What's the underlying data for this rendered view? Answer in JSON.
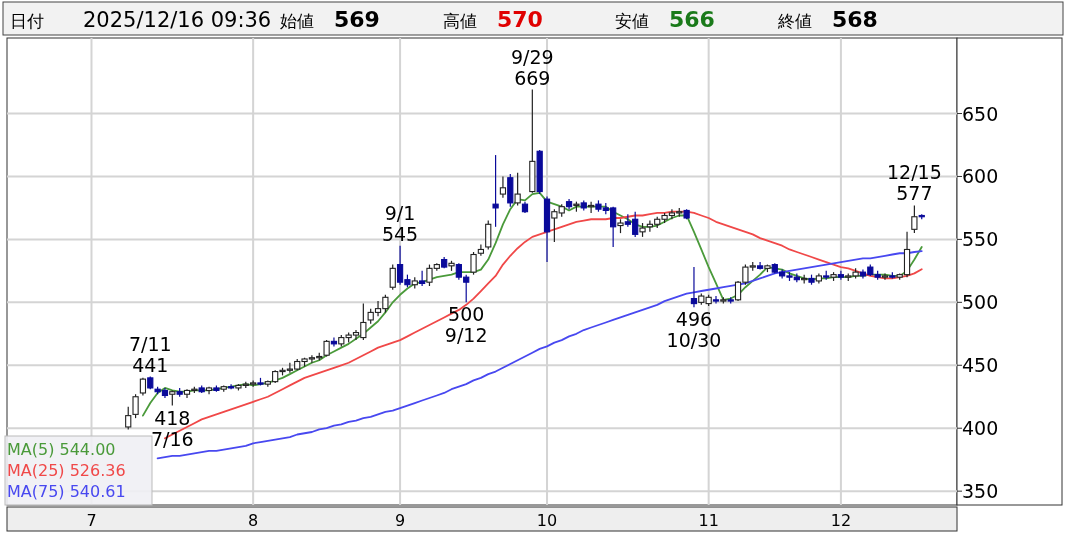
{
  "chart_data": {
    "type": "candlestick",
    "categories": [
      null,
      null,
      null,
      null,
      null,
      null,
      null,
      null,
      null,
      null,
      null,
      "7",
      null,
      null,
      null,
      null,
      null,
      null,
      null,
      null,
      null,
      null,
      null,
      null,
      null,
      null,
      null,
      null,
      null,
      null,
      null,
      null,
      null,
      "8",
      null,
      null,
      null,
      null,
      null,
      null,
      null,
      null,
      null,
      null,
      null,
      null,
      null,
      null,
      null,
      null,
      null,
      null,
      null,
      "9",
      null,
      null,
      null,
      null,
      null,
      null,
      null,
      null,
      null,
      null,
      null,
      null,
      null,
      null,
      null,
      null,
      null,
      null,
      null,
      "10",
      null,
      null,
      null,
      null,
      null,
      null,
      null,
      null,
      null,
      null,
      null,
      null,
      null,
      null,
      null,
      null,
      null,
      null,
      null,
      null,
      null,
      "11",
      null,
      null,
      null,
      null,
      null,
      null,
      null,
      null,
      null,
      null,
      null,
      null,
      null,
      null,
      null,
      null,
      null,
      "12",
      null,
      null,
      null,
      null,
      null,
      null,
      null,
      null,
      null,
      null,
      null
    ],
    "ohlc": [
      null,
      null,
      null,
      null,
      null,
      null,
      null,
      null,
      null,
      null,
      null,
      null,
      null,
      null,
      null,
      null,
      [
        401,
        417,
        399,
        410
      ],
      [
        411,
        427,
        408,
        425
      ],
      [
        428,
        440,
        426,
        439
      ],
      [
        440,
        441,
        431,
        432
      ],
      [
        431,
        433,
        427,
        429
      ],
      [
        430,
        432,
        424,
        426
      ],
      [
        427,
        430,
        418,
        429
      ],
      [
        429,
        432,
        425,
        427
      ],
      [
        427,
        431,
        424,
        430
      ],
      [
        430,
        433,
        428,
        431
      ],
      [
        432,
        434,
        428,
        429
      ],
      [
        430,
        433,
        427,
        432
      ],
      [
        432,
        434,
        429,
        430
      ],
      [
        431,
        434,
        429,
        433
      ],
      [
        433,
        435,
        431,
        432
      ],
      [
        432,
        435,
        430,
        434
      ],
      [
        434,
        437,
        432,
        435
      ],
      [
        435,
        438,
        433,
        436
      ],
      [
        436,
        440,
        434,
        435
      ],
      [
        435,
        438,
        433,
        437
      ],
      [
        437,
        446,
        436,
        445
      ],
      [
        445,
        448,
        442,
        446
      ],
      [
        446,
        452,
        444,
        447
      ],
      [
        447,
        455,
        446,
        453
      ],
      [
        453,
        456,
        449,
        455
      ],
      [
        455,
        458,
        452,
        456
      ],
      [
        456,
        460,
        454,
        457
      ],
      [
        458,
        470,
        457,
        469
      ],
      [
        469,
        472,
        465,
        467
      ],
      [
        467,
        474,
        465,
        472
      ],
      [
        472,
        476,
        468,
        474
      ],
      [
        474,
        478,
        470,
        476
      ],
      [
        472,
        499,
        470,
        484
      ],
      [
        486,
        495,
        483,
        492
      ],
      [
        492,
        501,
        489,
        495
      ],
      [
        495,
        506,
        492,
        504
      ],
      [
        512,
        530,
        510,
        527
      ],
      [
        530,
        545,
        514,
        516
      ],
      [
        518,
        522,
        512,
        514
      ],
      [
        514,
        520,
        511,
        517
      ],
      [
        517,
        525,
        513,
        515
      ],
      [
        516,
        530,
        513,
        527
      ],
      [
        527,
        531,
        525,
        530
      ],
      [
        534,
        536,
        527,
        528
      ],
      [
        529,
        533,
        525,
        531
      ],
      [
        530,
        531,
        518,
        520
      ],
      [
        520,
        522,
        500,
        516
      ],
      [
        524,
        540,
        522,
        538
      ],
      [
        539,
        546,
        537,
        542
      ],
      [
        544,
        565,
        542,
        562
      ],
      [
        578,
        617,
        560,
        575
      ],
      [
        586,
        600,
        583,
        591
      ],
      [
        599,
        602,
        576,
        579
      ],
      [
        579,
        603,
        577,
        586
      ],
      [
        578,
        580,
        571,
        572
      ],
      [
        588,
        669,
        587,
        612
      ],
      [
        620,
        621,
        586,
        588
      ],
      [
        582,
        584,
        532,
        556
      ],
      [
        567,
        574,
        548,
        572
      ],
      [
        571,
        578,
        568,
        576
      ],
      [
        580,
        582,
        574,
        576
      ],
      [
        577,
        580,
        572,
        578
      ],
      [
        579,
        581,
        573,
        575
      ],
      [
        576,
        580,
        571,
        577
      ],
      [
        578,
        581,
        572,
        574
      ],
      [
        575,
        579,
        570,
        573
      ],
      [
        575,
        576,
        544,
        560
      ],
      [
        561,
        566,
        555,
        563
      ],
      [
        564,
        570,
        560,
        562
      ],
      [
        566,
        572,
        552,
        554
      ],
      [
        556,
        563,
        552,
        559
      ],
      [
        560,
        565,
        556,
        562
      ],
      [
        562,
        568,
        559,
        566
      ],
      [
        566,
        571,
        563,
        569
      ],
      [
        569,
        574,
        566,
        571
      ],
      [
        571,
        575,
        568,
        572
      ],
      [
        573,
        574,
        566,
        567
      ],
      [
        503,
        528,
        496,
        499
      ],
      [
        500,
        507,
        498,
        505
      ],
      [
        499,
        506,
        497,
        504
      ],
      [
        502,
        505,
        499,
        501
      ],
      [
        501,
        504,
        499,
        502
      ],
      [
        502,
        504,
        499,
        501
      ],
      [
        502,
        517,
        501,
        516
      ],
      [
        516,
        530,
        514,
        528
      ],
      [
        528,
        532,
        525,
        529
      ],
      [
        529,
        532,
        526,
        527
      ],
      [
        527,
        530,
        524,
        529
      ],
      [
        530,
        531,
        523,
        524
      ],
      [
        524,
        526,
        519,
        521
      ],
      [
        521,
        524,
        517,
        520
      ],
      [
        520,
        523,
        516,
        518
      ],
      [
        518,
        522,
        515,
        519
      ],
      [
        519,
        522,
        514,
        516
      ],
      [
        517,
        523,
        515,
        521
      ],
      [
        521,
        525,
        518,
        520
      ],
      [
        520,
        524,
        517,
        522
      ],
      [
        522,
        525,
        518,
        520
      ],
      [
        520,
        523,
        517,
        521
      ],
      [
        521,
        527,
        519,
        524
      ],
      [
        524,
        526,
        519,
        521
      ],
      [
        528,
        530,
        521,
        522
      ],
      [
        522,
        525,
        518,
        520
      ],
      [
        520,
        523,
        518,
        521
      ],
      [
        521,
        524,
        519,
        520
      ],
      [
        520,
        523,
        518,
        522
      ],
      [
        522,
        556,
        520,
        542
      ],
      [
        558,
        577,
        555,
        568
      ],
      [
        569,
        570,
        566,
        568
      ]
    ],
    "series": [
      {
        "name": "MA(5) 544.00",
        "type": "line",
        "color": "#4a9a3a",
        "values": [
          null,
          null,
          null,
          null,
          null,
          null,
          null,
          null,
          null,
          null,
          null,
          null,
          null,
          null,
          null,
          null,
          null,
          null,
          410,
          420,
          428,
          432,
          430,
          429,
          429,
          430,
          430,
          430,
          431,
          432,
          433,
          434,
          435,
          434,
          435,
          436,
          438,
          440,
          443,
          446,
          449,
          452,
          454,
          458,
          461,
          464,
          467,
          471,
          475,
          480,
          485,
          492,
          500,
          506,
          511,
          515,
          516,
          518,
          520,
          521,
          522,
          524,
          524,
          524,
          526,
          534,
          547,
          562,
          574,
          582,
          581,
          586,
          587,
          580,
          578,
          576,
          573,
          576,
          576,
          576,
          576,
          576,
          572,
          569,
          566,
          562,
          560,
          560,
          561,
          564,
          567,
          569,
          569,
          556,
          542,
          528,
          515,
          502,
          503,
          506,
          512,
          517,
          522,
          528,
          527,
          526,
          523,
          521,
          519,
          518,
          519,
          519,
          520,
          520,
          520,
          521,
          521,
          522,
          522,
          522,
          521,
          521,
          525,
          534,
          544.0
        ]
      },
      {
        "name": "MA(25) 526.36",
        "type": "line",
        "color": "#f04848",
        "values": [
          null,
          null,
          null,
          null,
          null,
          null,
          null,
          null,
          null,
          null,
          null,
          null,
          null,
          null,
          null,
          null,
          null,
          null,
          null,
          null,
          null,
          392,
          395,
          398,
          401,
          404,
          407,
          409,
          411,
          413,
          415,
          417,
          419,
          421,
          423,
          425,
          428,
          431,
          434,
          437,
          440,
          442,
          444,
          446,
          448,
          450,
          452,
          455,
          458,
          461,
          464,
          466,
          468,
          470,
          473,
          476,
          479,
          482,
          485,
          488,
          491,
          494,
          498,
          503,
          509,
          515,
          521,
          530,
          537,
          543,
          548,
          552,
          554,
          556,
          558,
          560,
          562,
          564,
          565,
          566,
          566,
          566,
          567,
          567,
          568,
          569,
          569,
          570,
          571,
          571,
          572,
          572,
          572,
          571,
          569,
          567,
          564,
          562,
          560,
          558,
          556,
          554,
          551,
          549,
          547,
          545,
          542,
          540,
          538,
          536,
          534,
          532,
          530,
          528,
          527,
          525,
          523,
          521,
          520,
          519,
          519,
          520,
          521,
          523,
          526.36
        ]
      },
      {
        "name": "MA(75) 540.61",
        "type": "line",
        "color": "#4848f0",
        "values": [
          null,
          null,
          null,
          null,
          null,
          null,
          null,
          null,
          null,
          null,
          null,
          null,
          null,
          null,
          null,
          null,
          null,
          null,
          null,
          null,
          376,
          377,
          378,
          378,
          379,
          380,
          381,
          382,
          382,
          383,
          384,
          385,
          386,
          388,
          389,
          390,
          391,
          392,
          393,
          395,
          396,
          397,
          399,
          400,
          402,
          403,
          405,
          406,
          408,
          409,
          411,
          413,
          414,
          416,
          418,
          420,
          422,
          424,
          426,
          428,
          431,
          433,
          435,
          438,
          440,
          443,
          445,
          448,
          451,
          454,
          457,
          460,
          463,
          465,
          468,
          470,
          473,
          475,
          478,
          480,
          482,
          484,
          486,
          488,
          490,
          492,
          494,
          496,
          498,
          501,
          503,
          505,
          507,
          508,
          509,
          510,
          511,
          512,
          513,
          514,
          515,
          517,
          519,
          521,
          523,
          524,
          525,
          526,
          527,
          528,
          529,
          530,
          531,
          532,
          533,
          534,
          535,
          535,
          536,
          537,
          538,
          539,
          539,
          540,
          540.61
        ]
      }
    ],
    "ylim": [
      339,
      710
    ],
    "yticks": [
      350,
      400,
      450,
      500,
      550,
      600,
      650
    ],
    "grid": true,
    "legend": "bottom left",
    "annotations": [
      "日付",
      "2025/12/16 09:36",
      "始値",
      "569",
      "高値",
      "570",
      "安値",
      "566",
      "終値",
      "568",
      {
        "text": "7/11\n441",
        "y": 441
      },
      {
        "text": "418\n7/16",
        "y": 418
      },
      {
        "text": "9/1\n545",
        "y": 545
      },
      {
        "text": "500\n9/12",
        "y": 500
      },
      {
        "text": "9/29\n669",
        "y": 669
      },
      {
        "text": "496\n10/30",
        "y": 496
      },
      {
        "text": "12/15\n577",
        "y": 577
      }
    ]
  }
}
